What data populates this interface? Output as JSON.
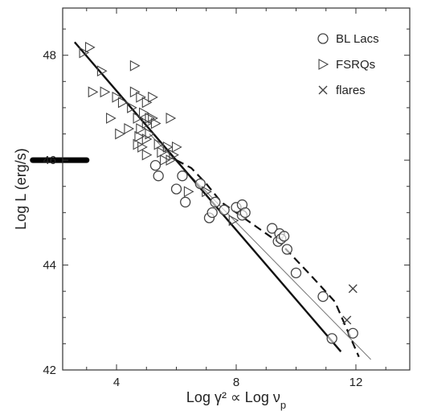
{
  "chart_data": {
    "type": "scatter",
    "title": "",
    "xlabel": "Log γ² ∝ Log ν",
    "xlabel_sub": "p",
    "ylabel": "Log L (erg/s)",
    "xlim": [
      2.2,
      13.8
    ],
    "ylim": [
      42,
      48.9
    ],
    "x_ticks": [
      4,
      8,
      12
    ],
    "y_ticks": [
      42,
      44,
      46,
      48
    ],
    "grid": false,
    "legend_position": "top-right",
    "colors": {
      "axes": "#333333",
      "markers": "#444444",
      "fit": "#111111",
      "thin": "#777777"
    },
    "series": [
      {
        "name": "BL Lacs",
        "marker": "circle",
        "points": [
          [
            5.3,
            45.9
          ],
          [
            5.4,
            45.7
          ],
          [
            6.0,
            45.45
          ],
          [
            6.2,
            45.7
          ],
          [
            6.3,
            45.2
          ],
          [
            6.8,
            45.55
          ],
          [
            7.1,
            44.9
          ],
          [
            7.2,
            45.0
          ],
          [
            7.3,
            45.2
          ],
          [
            7.6,
            45.05
          ],
          [
            8.0,
            45.1
          ],
          [
            8.2,
            44.95
          ],
          [
            8.2,
            45.15
          ],
          [
            8.3,
            45.0
          ],
          [
            9.2,
            44.7
          ],
          [
            9.4,
            44.45
          ],
          [
            9.45,
            44.6
          ],
          [
            9.5,
            44.5
          ],
          [
            9.6,
            44.55
          ],
          [
            9.7,
            44.3
          ],
          [
            10.0,
            43.85
          ],
          [
            10.9,
            43.4
          ],
          [
            11.2,
            42.6
          ],
          [
            11.9,
            42.7
          ]
        ]
      },
      {
        "name": "FSRQs",
        "marker": "triangle-right",
        "points": [
          [
            2.9,
            48.05
          ],
          [
            3.1,
            48.15
          ],
          [
            3.2,
            47.3
          ],
          [
            3.5,
            47.7
          ],
          [
            3.6,
            47.3
          ],
          [
            3.8,
            46.8
          ],
          [
            4.0,
            47.2
          ],
          [
            4.1,
            46.5
          ],
          [
            4.2,
            47.1
          ],
          [
            4.4,
            46.6
          ],
          [
            4.5,
            47.0
          ],
          [
            4.6,
            47.8
          ],
          [
            4.6,
            47.3
          ],
          [
            4.7,
            46.8
          ],
          [
            4.7,
            46.3
          ],
          [
            4.75,
            46.45
          ],
          [
            4.8,
            47.2
          ],
          [
            4.8,
            46.6
          ],
          [
            4.85,
            46.25
          ],
          [
            4.9,
            46.9
          ],
          [
            5.0,
            47.1
          ],
          [
            5.0,
            46.7
          ],
          [
            5.0,
            46.4
          ],
          [
            5.0,
            46.1
          ],
          [
            5.1,
            46.8
          ],
          [
            5.1,
            46.5
          ],
          [
            5.2,
            47.2
          ],
          [
            5.2,
            46.8
          ],
          [
            5.3,
            46.7
          ],
          [
            5.4,
            46.3
          ],
          [
            5.5,
            46.15
          ],
          [
            5.6,
            46.0
          ],
          [
            5.7,
            46.25
          ],
          [
            5.8,
            46.8
          ],
          [
            5.8,
            46.0
          ],
          [
            5.9,
            46.1
          ],
          [
            6.0,
            46.25
          ],
          [
            6.4,
            45.4
          ],
          [
            7.0,
            45.4
          ],
          [
            7.9,
            44.85
          ]
        ]
      },
      {
        "name": "flares",
        "marker": "x",
        "points": [
          [
            11.9,
            43.55
          ],
          [
            11.7,
            42.95
          ]
        ]
      }
    ],
    "fit_line": [
      [
        2.6,
        48.25
      ],
      [
        11.5,
        42.35
      ]
    ],
    "dashed_curve": [
      [
        6.0,
        46.0
      ],
      [
        6.5,
        45.85
      ],
      [
        7.0,
        45.55
      ],
      [
        7.5,
        45.2
      ],
      [
        8.5,
        44.8
      ],
      [
        9.5,
        44.4
      ],
      [
        10.5,
        43.8
      ],
      [
        11.3,
        43.3
      ],
      [
        12.1,
        42.25
      ]
    ],
    "thin_line": [
      [
        5.1,
        46.5
      ],
      [
        12.5,
        42.2
      ]
    ],
    "thick_marker": {
      "x": [
        1.2,
        3.0
      ],
      "y": 46.0
    }
  }
}
